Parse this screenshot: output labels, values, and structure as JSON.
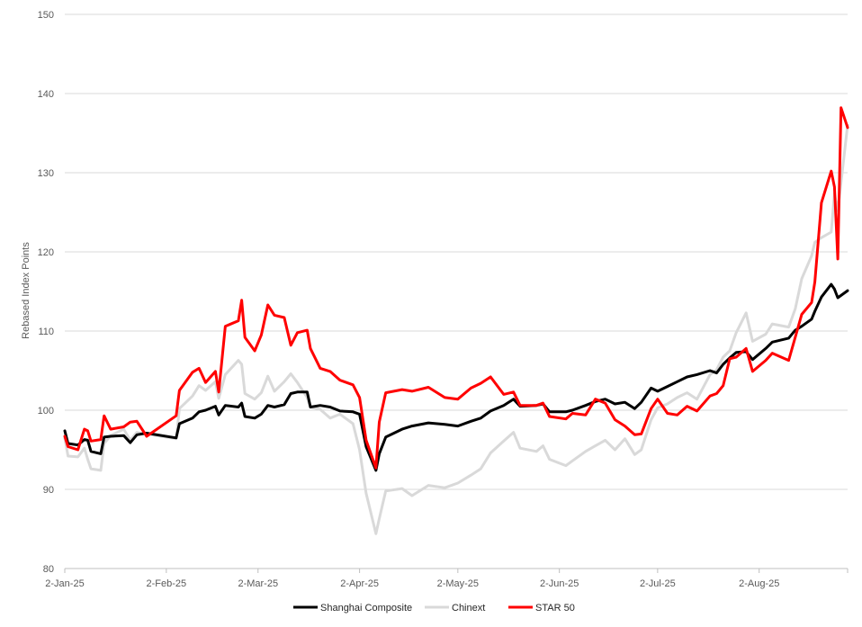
{
  "chart_data": {
    "type": "line",
    "title": "",
    "xlabel": "",
    "ylabel": "Rebased Index Points",
    "ylim": [
      80,
      150
    ],
    "yticks": [
      "80",
      "90",
      "100",
      "110",
      "120",
      "130",
      "140",
      "150"
    ],
    "xlim": [
      "2025-01-02",
      "2025-08-29"
    ],
    "xticks": [
      {
        "date": "2025-01-02",
        "label": "2-Jan-25"
      },
      {
        "date": "2025-02-02",
        "label": "2-Feb-25"
      },
      {
        "date": "2025-03-02",
        "label": "2-Mar-25"
      },
      {
        "date": "2025-04-02",
        "label": "2-Apr-25"
      },
      {
        "date": "2025-05-02",
        "label": "2-May-25"
      },
      {
        "date": "2025-06-02",
        "label": "2-Jun-25"
      },
      {
        "date": "2025-07-02",
        "label": "2-Jul-25"
      },
      {
        "date": "2025-08-02",
        "label": "2-Aug-25"
      }
    ],
    "grid": true,
    "legend_position": "bottom",
    "series": [
      {
        "name": "Shanghai Composite",
        "color": "#000000",
        "points": [
          [
            "2025-01-02",
            97.4
          ],
          [
            "2025-01-03",
            95.8
          ],
          [
            "2025-01-06",
            95.6
          ],
          [
            "2025-01-08",
            96.3
          ],
          [
            "2025-01-09",
            96.2
          ],
          [
            "2025-01-10",
            94.8
          ],
          [
            "2025-01-13",
            94.5
          ],
          [
            "2025-01-14",
            96.6
          ],
          [
            "2025-01-16",
            96.7
          ],
          [
            "2025-01-20",
            96.8
          ],
          [
            "2025-01-22",
            95.9
          ],
          [
            "2025-01-24",
            96.9
          ],
          [
            "2025-01-27",
            97.1
          ],
          [
            "2025-02-05",
            96.5
          ],
          [
            "2025-02-06",
            98.3
          ],
          [
            "2025-02-10",
            99.0
          ],
          [
            "2025-02-12",
            99.8
          ],
          [
            "2025-02-14",
            100.0
          ],
          [
            "2025-02-17",
            100.5
          ],
          [
            "2025-02-18",
            99.4
          ],
          [
            "2025-02-20",
            100.6
          ],
          [
            "2025-02-24",
            100.4
          ],
          [
            "2025-02-25",
            100.9
          ],
          [
            "2025-02-26",
            99.2
          ],
          [
            "2025-03-01",
            99.0
          ],
          [
            "2025-03-03",
            99.5
          ],
          [
            "2025-03-05",
            100.6
          ],
          [
            "2025-03-07",
            100.4
          ],
          [
            "2025-03-10",
            100.7
          ],
          [
            "2025-03-12",
            102.1
          ],
          [
            "2025-03-14",
            102.3
          ],
          [
            "2025-03-17",
            102.3
          ],
          [
            "2025-03-18",
            100.4
          ],
          [
            "2025-03-21",
            100.6
          ],
          [
            "2025-03-24",
            100.4
          ],
          [
            "2025-03-27",
            99.9
          ],
          [
            "2025-03-31",
            99.8
          ],
          [
            "2025-04-02",
            99.5
          ],
          [
            "2025-04-04",
            95.4
          ],
          [
            "2025-04-07",
            92.4
          ],
          [
            "2025-04-08",
            94.5
          ],
          [
            "2025-04-10",
            96.6
          ],
          [
            "2025-04-15",
            97.6
          ],
          [
            "2025-04-18",
            98.0
          ],
          [
            "2025-04-23",
            98.4
          ],
          [
            "2025-04-28",
            98.2
          ],
          [
            "2025-05-02",
            98.0
          ],
          [
            "2025-05-06",
            98.6
          ],
          [
            "2025-05-09",
            99.0
          ],
          [
            "2025-05-12",
            99.9
          ],
          [
            "2025-05-16",
            100.6
          ],
          [
            "2025-05-19",
            101.4
          ],
          [
            "2025-05-21",
            100.5
          ],
          [
            "2025-05-26",
            100.6
          ],
          [
            "2025-05-28",
            100.8
          ],
          [
            "2025-05-30",
            99.8
          ],
          [
            "2025-06-04",
            99.8
          ],
          [
            "2025-06-06",
            100.0
          ],
          [
            "2025-06-10",
            100.6
          ],
          [
            "2025-06-13",
            101.1
          ],
          [
            "2025-06-16",
            101.4
          ],
          [
            "2025-06-19",
            100.8
          ],
          [
            "2025-06-22",
            101.0
          ],
          [
            "2025-06-25",
            100.2
          ],
          [
            "2025-06-27",
            101.0
          ],
          [
            "2025-06-30",
            102.8
          ],
          [
            "2025-07-02",
            102.4
          ],
          [
            "2025-07-05",
            103.0
          ],
          [
            "2025-07-08",
            103.6
          ],
          [
            "2025-07-11",
            104.2
          ],
          [
            "2025-07-14",
            104.5
          ],
          [
            "2025-07-18",
            105.0
          ],
          [
            "2025-07-20",
            104.7
          ],
          [
            "2025-07-22",
            105.8
          ],
          [
            "2025-07-24",
            106.6
          ],
          [
            "2025-07-26",
            107.3
          ],
          [
            "2025-07-29",
            107.4
          ],
          [
            "2025-07-31",
            106.4
          ],
          [
            "2025-08-04",
            107.8
          ],
          [
            "2025-08-06",
            108.6
          ],
          [
            "2025-08-11",
            109.1
          ],
          [
            "2025-08-13",
            110.1
          ],
          [
            "2025-08-15",
            110.6
          ],
          [
            "2025-08-18",
            111.5
          ],
          [
            "2025-08-19",
            112.5
          ],
          [
            "2025-08-21",
            114.3
          ],
          [
            "2025-08-24",
            115.9
          ],
          [
            "2025-08-25",
            115.3
          ],
          [
            "2025-08-26",
            114.2
          ],
          [
            "2025-08-29",
            115.1
          ]
        ]
      },
      {
        "name": "Chinext",
        "color": "#d9d9d9",
        "points": [
          [
            "2025-01-02",
            96.5
          ],
          [
            "2025-01-03",
            94.2
          ],
          [
            "2025-01-06",
            94.1
          ],
          [
            "2025-01-08",
            95.2
          ],
          [
            "2025-01-09",
            93.8
          ],
          [
            "2025-01-10",
            92.6
          ],
          [
            "2025-01-13",
            92.4
          ],
          [
            "2025-01-14",
            95.8
          ],
          [
            "2025-01-16",
            96.8
          ],
          [
            "2025-01-20",
            97.6
          ],
          [
            "2025-01-22",
            96.2
          ],
          [
            "2025-01-24",
            97.2
          ],
          [
            "2025-01-27",
            97.0
          ],
          [
            "2025-02-05",
            96.4
          ],
          [
            "2025-02-06",
            100.2
          ],
          [
            "2025-02-10",
            101.8
          ],
          [
            "2025-02-12",
            103.1
          ],
          [
            "2025-02-14",
            102.5
          ],
          [
            "2025-02-17",
            103.6
          ],
          [
            "2025-02-18",
            101.5
          ],
          [
            "2025-02-20",
            104.5
          ],
          [
            "2025-02-24",
            106.3
          ],
          [
            "2025-02-25",
            105.8
          ],
          [
            "2025-02-26",
            102.1
          ],
          [
            "2025-03-01",
            101.4
          ],
          [
            "2025-03-03",
            102.2
          ],
          [
            "2025-03-05",
            104.3
          ],
          [
            "2025-03-07",
            102.4
          ],
          [
            "2025-03-10",
            103.6
          ],
          [
            "2025-03-12",
            104.6
          ],
          [
            "2025-03-14",
            103.5
          ],
          [
            "2025-03-17",
            101.6
          ],
          [
            "2025-03-18",
            100.4
          ],
          [
            "2025-03-21",
            100.1
          ],
          [
            "2025-03-24",
            99.0
          ],
          [
            "2025-03-27",
            99.5
          ],
          [
            "2025-03-31",
            98.3
          ],
          [
            "2025-04-02",
            95.0
          ],
          [
            "2025-04-04",
            89.5
          ],
          [
            "2025-04-07",
            84.4
          ],
          [
            "2025-04-08",
            86.3
          ],
          [
            "2025-04-10",
            89.8
          ],
          [
            "2025-04-15",
            90.1
          ],
          [
            "2025-04-18",
            89.2
          ],
          [
            "2025-04-23",
            90.5
          ],
          [
            "2025-04-28",
            90.2
          ],
          [
            "2025-05-02",
            90.8
          ],
          [
            "2025-05-06",
            91.8
          ],
          [
            "2025-05-09",
            92.6
          ],
          [
            "2025-05-12",
            94.6
          ],
          [
            "2025-05-16",
            96.1
          ],
          [
            "2025-05-19",
            97.2
          ],
          [
            "2025-05-21",
            95.2
          ],
          [
            "2025-05-26",
            94.8
          ],
          [
            "2025-05-28",
            95.5
          ],
          [
            "2025-05-30",
            93.8
          ],
          [
            "2025-06-04",
            93.0
          ],
          [
            "2025-06-06",
            93.6
          ],
          [
            "2025-06-10",
            94.8
          ],
          [
            "2025-06-13",
            95.5
          ],
          [
            "2025-06-16",
            96.2
          ],
          [
            "2025-06-19",
            95.0
          ],
          [
            "2025-06-22",
            96.4
          ],
          [
            "2025-06-25",
            94.4
          ],
          [
            "2025-06-27",
            95.0
          ],
          [
            "2025-06-30",
            98.8
          ],
          [
            "2025-07-02",
            100.3
          ],
          [
            "2025-07-05",
            100.8
          ],
          [
            "2025-07-08",
            101.6
          ],
          [
            "2025-07-11",
            102.2
          ],
          [
            "2025-07-14",
            101.4
          ],
          [
            "2025-07-18",
            104.5
          ],
          [
            "2025-07-20",
            105.1
          ],
          [
            "2025-07-22",
            106.7
          ],
          [
            "2025-07-24",
            107.5
          ],
          [
            "2025-07-26",
            109.8
          ],
          [
            "2025-07-29",
            112.3
          ],
          [
            "2025-07-31",
            108.7
          ],
          [
            "2025-08-04",
            109.6
          ],
          [
            "2025-08-06",
            110.9
          ],
          [
            "2025-08-11",
            110.5
          ],
          [
            "2025-08-13",
            112.8
          ],
          [
            "2025-08-15",
            116.6
          ],
          [
            "2025-08-18",
            119.5
          ],
          [
            "2025-08-19",
            121.2
          ],
          [
            "2025-08-21",
            121.8
          ],
          [
            "2025-08-24",
            122.5
          ],
          [
            "2025-08-25",
            127.4
          ],
          [
            "2025-08-26",
            125.2
          ],
          [
            "2025-08-29",
            136.0
          ]
        ]
      },
      {
        "name": "STAR 50",
        "color": "#ff0000",
        "points": [
          [
            "2025-01-02",
            96.7
          ],
          [
            "2025-01-03",
            95.4
          ],
          [
            "2025-01-06",
            95.0
          ],
          [
            "2025-01-08",
            97.6
          ],
          [
            "2025-01-09",
            97.4
          ],
          [
            "2025-01-10",
            96.1
          ],
          [
            "2025-01-13",
            96.3
          ],
          [
            "2025-01-14",
            99.3
          ],
          [
            "2025-01-16",
            97.6
          ],
          [
            "2025-01-20",
            97.9
          ],
          [
            "2025-01-22",
            98.5
          ],
          [
            "2025-01-24",
            98.6
          ],
          [
            "2025-01-27",
            96.7
          ],
          [
            "2025-02-05",
            99.3
          ],
          [
            "2025-02-06",
            102.5
          ],
          [
            "2025-02-10",
            104.8
          ],
          [
            "2025-02-12",
            105.3
          ],
          [
            "2025-02-14",
            103.5
          ],
          [
            "2025-02-17",
            104.9
          ],
          [
            "2025-02-18",
            102.3
          ],
          [
            "2025-02-20",
            110.6
          ],
          [
            "2025-02-24",
            111.3
          ],
          [
            "2025-02-25",
            113.9
          ],
          [
            "2025-02-26",
            109.2
          ],
          [
            "2025-03-01",
            107.5
          ],
          [
            "2025-03-03",
            109.5
          ],
          [
            "2025-03-05",
            113.3
          ],
          [
            "2025-03-07",
            112.0
          ],
          [
            "2025-03-10",
            111.7
          ],
          [
            "2025-03-12",
            108.2
          ],
          [
            "2025-03-14",
            109.8
          ],
          [
            "2025-03-17",
            110.1
          ],
          [
            "2025-03-18",
            107.8
          ],
          [
            "2025-03-21",
            105.3
          ],
          [
            "2025-03-24",
            104.9
          ],
          [
            "2025-03-27",
            103.8
          ],
          [
            "2025-03-31",
            103.2
          ],
          [
            "2025-04-02",
            101.6
          ],
          [
            "2025-04-04",
            96.2
          ],
          [
            "2025-04-07",
            92.7
          ],
          [
            "2025-04-08",
            98.5
          ],
          [
            "2025-04-10",
            102.2
          ],
          [
            "2025-04-15",
            102.6
          ],
          [
            "2025-04-18",
            102.4
          ],
          [
            "2025-04-23",
            102.9
          ],
          [
            "2025-04-28",
            101.6
          ],
          [
            "2025-05-02",
            101.4
          ],
          [
            "2025-05-06",
            102.8
          ],
          [
            "2025-05-09",
            103.4
          ],
          [
            "2025-05-12",
            104.2
          ],
          [
            "2025-05-16",
            102.0
          ],
          [
            "2025-05-19",
            102.3
          ],
          [
            "2025-05-21",
            100.6
          ],
          [
            "2025-05-26",
            100.6
          ],
          [
            "2025-05-28",
            100.9
          ],
          [
            "2025-05-30",
            99.2
          ],
          [
            "2025-06-04",
            98.9
          ],
          [
            "2025-06-06",
            99.6
          ],
          [
            "2025-06-10",
            99.4
          ],
          [
            "2025-06-13",
            101.4
          ],
          [
            "2025-06-16",
            100.9
          ],
          [
            "2025-06-19",
            98.8
          ],
          [
            "2025-06-22",
            98.0
          ],
          [
            "2025-06-25",
            96.9
          ],
          [
            "2025-06-27",
            97.0
          ],
          [
            "2025-06-30",
            100.2
          ],
          [
            "2025-07-02",
            101.4
          ],
          [
            "2025-07-05",
            99.6
          ],
          [
            "2025-07-08",
            99.4
          ],
          [
            "2025-07-11",
            100.5
          ],
          [
            "2025-07-14",
            99.9
          ],
          [
            "2025-07-18",
            101.8
          ],
          [
            "2025-07-20",
            102.1
          ],
          [
            "2025-07-22",
            103.1
          ],
          [
            "2025-07-24",
            106.5
          ],
          [
            "2025-07-26",
            106.7
          ],
          [
            "2025-07-29",
            107.8
          ],
          [
            "2025-07-31",
            104.9
          ],
          [
            "2025-08-04",
            106.3
          ],
          [
            "2025-08-06",
            107.2
          ],
          [
            "2025-08-11",
            106.3
          ],
          [
            "2025-08-13",
            109.2
          ],
          [
            "2025-08-15",
            112.1
          ],
          [
            "2025-08-18",
            113.6
          ],
          [
            "2025-08-19",
            116.2
          ],
          [
            "2025-08-21",
            126.2
          ],
          [
            "2025-08-24",
            130.2
          ],
          [
            "2025-08-25",
            128.2
          ],
          [
            "2025-08-26",
            119.1
          ],
          [
            "2025-08-27",
            138.2
          ],
          [
            "2025-08-29",
            135.7
          ]
        ]
      }
    ]
  }
}
